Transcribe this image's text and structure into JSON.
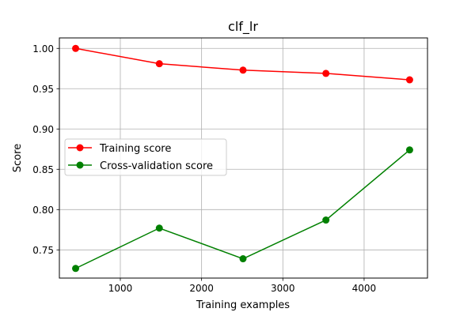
{
  "chart_data": {
    "type": "line",
    "title": "clf_lr",
    "xlabel": "Training examples",
    "ylabel": "Score",
    "xlim": [
      250,
      4780
    ],
    "ylim": [
      0.715,
      1.013
    ],
    "xticks": [
      1000,
      2000,
      3000,
      4000
    ],
    "xtick_labels": [
      "1000",
      "2000",
      "3000",
      "4000"
    ],
    "yticks": [
      0.75,
      0.8,
      0.85,
      0.9,
      0.95,
      1.0
    ],
    "ytick_labels": [
      "0.75",
      "0.80",
      "0.85",
      "0.90",
      "0.95",
      "1.00"
    ],
    "grid": true,
    "legend_position": "center-left",
    "x": [
      450,
      1480,
      2510,
      3530,
      4560
    ],
    "series": [
      {
        "name": "Training score",
        "color": "#ff0000",
        "marker": "circle",
        "values": [
          1.0,
          0.981,
          0.973,
          0.969,
          0.961
        ]
      },
      {
        "name": "Cross-validation score",
        "color": "#008000",
        "marker": "circle",
        "values": [
          0.727,
          0.777,
          0.739,
          0.787,
          0.874
        ]
      }
    ]
  }
}
